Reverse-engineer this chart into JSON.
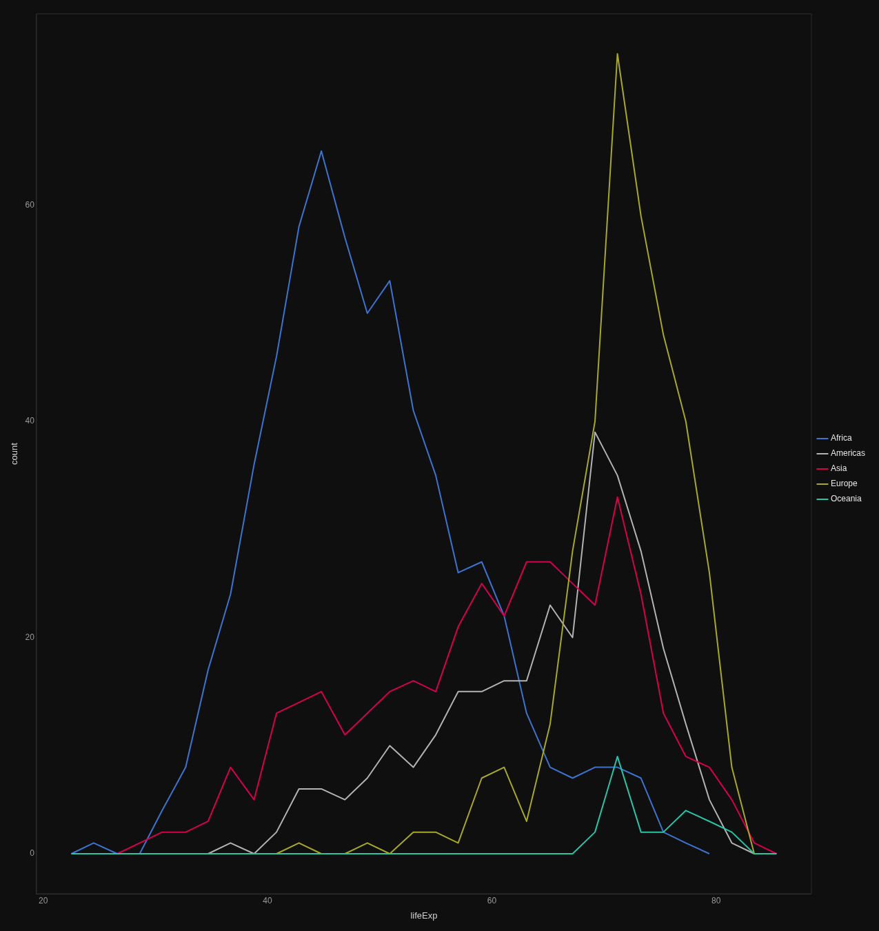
{
  "chart_data": {
    "type": "line",
    "xlabel": "lifeExp",
    "ylabel": "count",
    "x": [
      22.5,
      24.5,
      26.6,
      28.6,
      30.6,
      32.7,
      34.7,
      36.7,
      38.8,
      40.8,
      42.8,
      44.8,
      46.9,
      48.9,
      50.9,
      53.0,
      55.0,
      57.0,
      59.1,
      61.1,
      63.1,
      65.2,
      67.2,
      69.2,
      71.2,
      73.3,
      75.3,
      77.3,
      79.4,
      81.4,
      83.4,
      85.4
    ],
    "series": [
      {
        "name": "Africa",
        "color": "#3d74d0",
        "values": [
          0,
          1,
          0,
          0,
          4,
          8,
          17,
          24,
          36,
          46,
          58,
          65,
          57,
          50,
          53,
          41,
          35,
          26,
          27,
          22,
          13,
          8,
          7,
          8,
          8,
          7,
          2,
          1,
          0,
          null,
          null,
          null
        ]
      },
      {
        "name": "Americas",
        "color": "#b3b3b3",
        "values": [
          null,
          null,
          null,
          null,
          null,
          null,
          0,
          1,
          0,
          2,
          6,
          6,
          5,
          7,
          10,
          8,
          11,
          15,
          15,
          16,
          16,
          23,
          20,
          39,
          35,
          28,
          19,
          12,
          5,
          1,
          0,
          null
        ]
      },
      {
        "name": "Asia",
        "color": "#d6004f",
        "values": [
          null,
          null,
          0,
          1,
          2,
          2,
          3,
          8,
          5,
          13,
          14,
          15,
          11,
          13,
          15,
          16,
          15,
          21,
          25,
          22,
          27,
          27,
          25,
          23,
          33,
          24,
          13,
          9,
          8,
          5,
          1,
          0
        ]
      },
      {
        "name": "Europe",
        "color": "#a8a82a",
        "values": [
          null,
          null,
          null,
          null,
          null,
          null,
          null,
          null,
          null,
          0,
          1,
          0,
          0,
          1,
          0,
          2,
          2,
          1,
          7,
          8,
          3,
          12,
          28,
          40,
          74,
          59,
          48,
          40,
          26,
          8,
          0,
          null
        ]
      },
      {
        "name": "Oceania",
        "color": "#2ac4a6",
        "values": [
          0,
          0,
          0,
          0,
          0,
          0,
          0,
          0,
          0,
          0,
          0,
          0,
          0,
          0,
          0,
          0,
          0,
          0,
          0,
          0,
          0,
          0,
          0,
          2,
          9,
          2,
          2,
          4,
          3,
          2,
          0,
          0
        ]
      }
    ],
    "xlim": [
      19.4,
      88.5
    ],
    "ylim": [
      -3.7,
      77.7
    ],
    "xticks": [
      20,
      40,
      60,
      80
    ],
    "yticks": [
      0,
      20,
      40,
      60
    ],
    "grid": false,
    "legend": "right",
    "marker": "none",
    "line_style": "solid"
  }
}
